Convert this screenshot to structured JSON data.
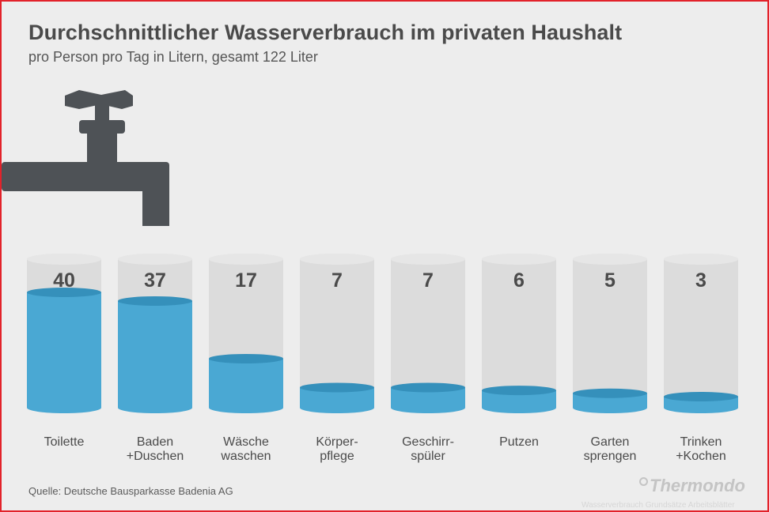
{
  "title": "Durchschnittlicher Wasserverbrauch im privaten Haushalt",
  "subtitle": "pro Person pro Tag in Litern, gesamt 122 Liter",
  "source": "Quelle: Deutsche Bausparkasse Badenia AG",
  "logo_text": "Thermondo",
  "watermark": "Wasserverbrauch Grundsätze Arbeitsblätter",
  "colors": {
    "background": "#ededed",
    "glass": "#dcdcdc",
    "water": "#4aa8d3",
    "water_top": "#3590bb",
    "faucet": "#4e5256",
    "text": "#4a4a4a",
    "border": "#e2222a"
  },
  "icons": [
    "faucet-icon"
  ],
  "chart_data": {
    "type": "bar",
    "title": "Durchschnittlicher Wasserverbrauch im privaten Haushalt",
    "subtitle": "pro Person pro Tag in Litern, gesamt 122 Liter",
    "unit": "Liter",
    "ylim": [
      0,
      43
    ],
    "grid": false,
    "categories": [
      [
        "Toilette"
      ],
      [
        "Baden",
        "+Duschen"
      ],
      [
        "Wäsche",
        "waschen"
      ],
      [
        "Körper-",
        "pflege"
      ],
      [
        "Geschirr-",
        "spüler"
      ],
      [
        "Putzen"
      ],
      [
        "Garten",
        "sprengen"
      ],
      [
        "Trinken",
        "+Kochen"
      ]
    ],
    "values": [
      40,
      37,
      17,
      7,
      7,
      6,
      5,
      3
    ]
  }
}
